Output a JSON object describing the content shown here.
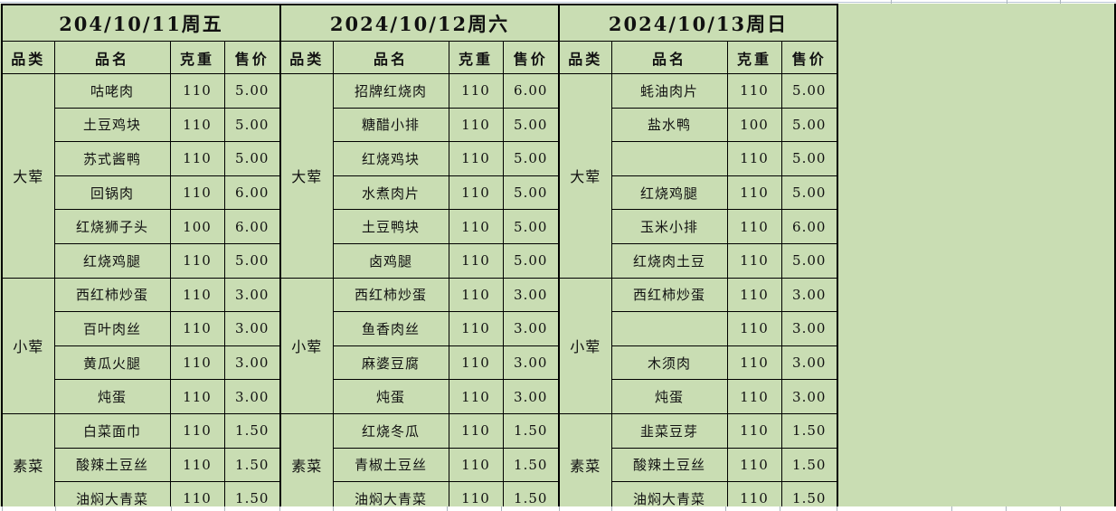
{
  "colors": {
    "fill": "#c9ddb3",
    "border": "#000000",
    "text": "#111111",
    "gridline": "#aab4bc",
    "top_gridline": "#b9c6d4"
  },
  "columns": [
    "品类",
    "品名",
    "克重",
    "售价"
  ],
  "days": [
    {
      "date": "204/10/11周五",
      "sections": [
        {
          "category": "大荤",
          "items": [
            [
              "咕咾肉",
              "110",
              "5.00"
            ],
            [
              "土豆鸡块",
              "110",
              "5.00"
            ],
            [
              "苏式酱鸭",
              "110",
              "5.00"
            ],
            [
              "回锅肉",
              "110",
              "6.00"
            ],
            [
              "红烧狮子头",
              "100",
              "6.00"
            ],
            [
              "红烧鸡腿",
              "110",
              "5.00"
            ]
          ]
        },
        {
          "category": "小荤",
          "items": [
            [
              "西红柿炒蛋",
              "110",
              "3.00"
            ],
            [
              "百叶肉丝",
              "110",
              "3.00"
            ],
            [
              "黄瓜火腿",
              "110",
              "3.00"
            ],
            [
              "炖蛋",
              "110",
              "3.00"
            ]
          ]
        },
        {
          "category": "素菜",
          "items": [
            [
              "白菜面巾",
              "110",
              "1.50"
            ],
            [
              "酸辣土豆丝",
              "110",
              "1.50"
            ],
            [
              "油焖大青菜",
              "110",
              "1.50"
            ]
          ]
        }
      ]
    },
    {
      "date": "2024/10/12周六",
      "sections": [
        {
          "category": "大荤",
          "items": [
            [
              "招牌红烧肉",
              "110",
              "6.00"
            ],
            [
              "糖醋小排",
              "110",
              "5.00"
            ],
            [
              "红烧鸡块",
              "110",
              "5.00"
            ],
            [
              "水煮肉片",
              "110",
              "5.00"
            ],
            [
              "土豆鸭块",
              "110",
              "5.00"
            ],
            [
              "卤鸡腿",
              "110",
              "5.00"
            ]
          ]
        },
        {
          "category": "小荤",
          "items": [
            [
              "西红柿炒蛋",
              "110",
              "3.00"
            ],
            [
              "鱼香肉丝",
              "110",
              "3.00"
            ],
            [
              "麻婆豆腐",
              "110",
              "3.00"
            ],
            [
              "炖蛋",
              "110",
              "3.00"
            ]
          ]
        },
        {
          "category": "素菜",
          "items": [
            [
              "红烧冬瓜",
              "110",
              "1.50"
            ],
            [
              "青椒土豆丝",
              "110",
              "1.50"
            ],
            [
              "油焖大青菜",
              "110",
              "1.50"
            ]
          ]
        }
      ]
    },
    {
      "date": "2024/10/13周日",
      "sections": [
        {
          "category": "大荤",
          "items": [
            [
              "蚝油肉片",
              "110",
              "5.00"
            ],
            [
              "盐水鸭",
              "100",
              "5.00"
            ],
            [
              "",
              "110",
              "5.00"
            ],
            [
              "红烧鸡腿",
              "110",
              "5.00"
            ],
            [
              "玉米小排",
              "110",
              "6.00"
            ],
            [
              "红烧肉土豆",
              "110",
              "5.00"
            ]
          ]
        },
        {
          "category": "小荤",
          "items": [
            [
              "西红柿炒蛋",
              "110",
              "3.00"
            ],
            [
              "",
              "110",
              "3.00"
            ],
            [
              "木须肉",
              "110",
              "3.00"
            ],
            [
              "炖蛋",
              "110",
              "3.00"
            ]
          ]
        },
        {
          "category": "素菜",
          "items": [
            [
              "韭菜豆芽",
              "110",
              "1.50"
            ],
            [
              "酸辣土豆丝",
              "110",
              "1.50"
            ],
            [
              "油焖大青菜",
              "110",
              "1.50"
            ]
          ]
        }
      ]
    }
  ]
}
